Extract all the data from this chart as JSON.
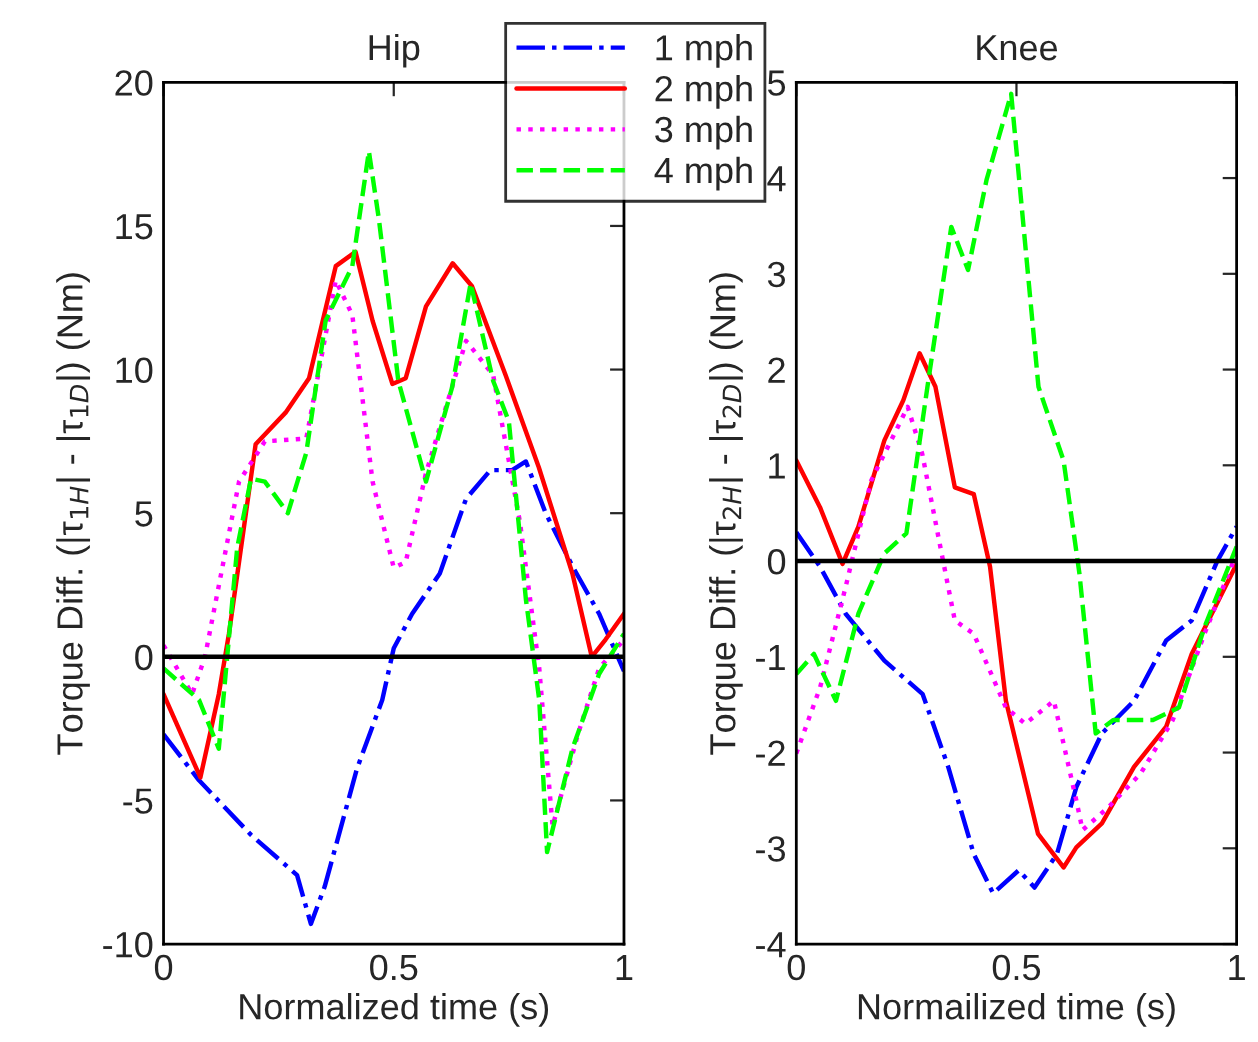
{
  "chart_data": [
    {
      "type": "line",
      "title": "Hip",
      "xlabel": "Normalized time (s)",
      "ylabel": "Torque Diff. (|τ$_{1H}$| - |τ$_{1D}$|) (Nm)",
      "xlim": [
        0,
        1
      ],
      "ylim": [
        -10,
        20
      ],
      "xticks": [
        0,
        0.5,
        1
      ],
      "yticks": [
        -10,
        -5,
        0,
        5,
        10,
        15,
        20
      ],
      "grid": false,
      "legend": "top right",
      "ref_lines": [
        {
          "axis": "y",
          "value": 0,
          "color": "#000000"
        }
      ],
      "series": [
        {
          "name": "1 mph",
          "color": "#0000ff",
          "line_style": "dashdot",
          "x": [
            0,
            0.077,
            0.19,
            0.29,
            0.32,
            0.35,
            0.42,
            0.475,
            0.5,
            0.54,
            0.6,
            0.657,
            0.71,
            0.757,
            0.787,
            0.83,
            0.89,
            0.946,
            1
          ],
          "values": [
            -2.7,
            -4.3,
            -6.2,
            -7.6,
            -9.3,
            -8.0,
            -3.9,
            -1.5,
            0.3,
            1.5,
            2.9,
            5.5,
            6.5,
            6.5,
            6.8,
            5.0,
            3.1,
            1.5,
            -0.5
          ]
        },
        {
          "name": "2 mph",
          "color": "#ff0000",
          "line_style": "solid",
          "x": [
            0,
            0.08,
            0.12,
            0.142,
            0.2,
            0.265,
            0.316,
            0.374,
            0.417,
            0.454,
            0.497,
            0.526,
            0.57,
            0.628,
            0.67,
            0.743,
            0.815,
            0.888,
            0.93,
            0.96,
            1
          ],
          "values": [
            -1.3,
            -4.2,
            -1.3,
            0.8,
            7.4,
            8.5,
            9.7,
            13.6,
            14.1,
            11.7,
            9.5,
            9.7,
            12.2,
            13.7,
            12.9,
            9.8,
            6.6,
            2.9,
            0,
            0.6,
            1.5
          ]
        },
        {
          "name": "3 mph",
          "color": "#ff00ff",
          "line_style": "dotted",
          "x": [
            0,
            0.062,
            0.09,
            0.164,
            0.22,
            0.31,
            0.374,
            0.41,
            0.454,
            0.5,
            0.526,
            0.57,
            0.657,
            0.716,
            0.774,
            0.816,
            0.845,
            0.9,
            0.946,
            1
          ],
          "values": [
            0.4,
            -1.3,
            0,
            6.1,
            7.5,
            7.6,
            13.1,
            11.9,
            6.1,
            3.1,
            3.3,
            6.4,
            11.0,
            9.8,
            4.7,
            -0.4,
            -5.9,
            -2.7,
            -0.4,
            0.6
          ]
        },
        {
          "name": "4 mph",
          "color": "#00ff00",
          "line_style": "dashed",
          "x": [
            0,
            0.077,
            0.12,
            0.16,
            0.19,
            0.22,
            0.27,
            0.31,
            0.352,
            0.41,
            0.446,
            0.468,
            0.51,
            0.57,
            0.627,
            0.667,
            0.716,
            0.75,
            0.787,
            0.816,
            0.833,
            0.888,
            0.946,
            1
          ],
          "values": [
            -0.4,
            -1.5,
            -3.2,
            3.8,
            6.2,
            6.1,
            5.0,
            7.1,
            11.7,
            13.6,
            17.6,
            15.2,
            9.6,
            6.1,
            9.4,
            13.0,
            9.6,
            8.2,
            2.0,
            -1.5,
            -6.8,
            -3.2,
            -0.6,
            0.8
          ]
        }
      ]
    },
    {
      "type": "line",
      "title": "Knee",
      "xlabel": "Normailized time (s)",
      "ylabel": "Torque Diff. (|τ$_{2H}$| - |τ$_{2D}$|) (Nm)",
      "xlim": [
        0,
        1
      ],
      "ylim": [
        -4,
        5
      ],
      "xticks": [
        0,
        0.5,
        1
      ],
      "yticks": [
        -4,
        -3,
        -2,
        -1,
        0,
        1,
        2,
        3,
        4,
        5
      ],
      "grid": false,
      "ref_lines": [
        {
          "axis": "y",
          "value": 0,
          "color": "#000000"
        }
      ],
      "series": [
        {
          "color": "#0000ff",
          "line_style": "dashdot",
          "x": [
            0,
            0.054,
            0.112,
            0.2,
            0.287,
            0.345,
            0.403,
            0.447,
            0.505,
            0.541,
            0.592,
            0.636,
            0.694,
            0.767,
            0.84,
            0.898,
            0.956,
            1
          ],
          "values": [
            0.3,
            -0.06,
            -0.55,
            -1.04,
            -1.39,
            -2.15,
            -3.06,
            -3.47,
            -3.23,
            -3.41,
            -3.06,
            -2.36,
            -1.8,
            -1.46,
            -0.83,
            -0.62,
            0,
            0.36
          ]
        },
        {
          "color": "#ff0000",
          "line_style": "solid",
          "x": [
            0,
            0.054,
            0.105,
            0.141,
            0.2,
            0.243,
            0.28,
            0.316,
            0.36,
            0.403,
            0.44,
            0.476,
            0.549,
            0.607,
            0.636,
            0.694,
            0.767,
            0.84,
            0.898,
            1
          ],
          "values": [
            1.05,
            0.56,
            -0.03,
            0.36,
            1.26,
            1.68,
            2.17,
            1.82,
            0.77,
            0.7,
            -0.06,
            -1.46,
            -2.85,
            -3.2,
            -2.99,
            -2.74,
            -2.15,
            -1.73,
            -0.97,
            -0.03
          ]
        },
        {
          "color": "#ff00ff",
          "line_style": "dotted",
          "x": [
            0,
            0.054,
            0.112,
            0.17,
            0.253,
            0.286,
            0.33,
            0.36,
            0.403,
            0.476,
            0.52,
            0.585,
            0.636,
            0.65,
            0.709,
            0.782,
            0.855,
            0.927,
            1
          ],
          "values": [
            -2.01,
            -1.32,
            -0.27,
            0.84,
            1.61,
            1.12,
            0.08,
            -0.62,
            -0.76,
            -1.53,
            -1.7,
            -1.46,
            -2.5,
            -2.81,
            -2.57,
            -2.22,
            -1.66,
            -0.76,
            0.08
          ]
        },
        {
          "color": "#00ff00",
          "line_style": "dashed",
          "x": [
            0,
            0.04,
            0.09,
            0.141,
            0.2,
            0.25,
            0.3,
            0.352,
            0.39,
            0.432,
            0.488,
            0.55,
            0.607,
            0.643,
            0.68,
            0.72,
            0.81,
            0.869,
            0.927,
            1
          ],
          "values": [
            -1.18,
            -0.97,
            -1.46,
            -0.55,
            0.08,
            0.29,
            1.89,
            3.49,
            3.04,
            3.98,
            4.88,
            1.82,
            1.05,
            -0.13,
            -1.8,
            -1.66,
            -1.66,
            -1.53,
            -0.69,
            0.15
          ]
        }
      ]
    }
  ]
}
